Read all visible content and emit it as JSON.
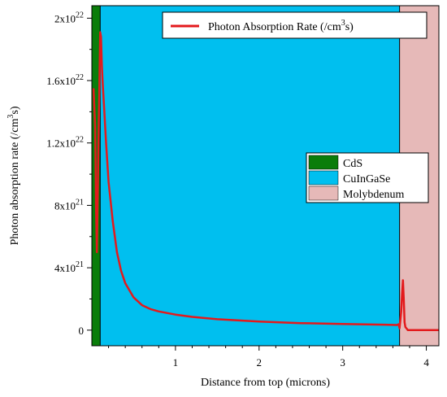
{
  "chart_data": {
    "type": "line",
    "title": "",
    "xlabel": "Distance from top (microns)",
    "ylabel_parts": [
      "Photon absorption rate (/cm",
      "3",
      "s)"
    ],
    "xlim": [
      0,
      4.15
    ],
    "ylim": [
      -1e+21,
      2.08e+22
    ],
    "x_ticks": [
      1,
      2,
      3,
      4
    ],
    "y_ticks": [
      {
        "value": 0,
        "mantissa": "0",
        "exp": ""
      },
      {
        "value": 4e+21,
        "mantissa": "4x10",
        "exp": "21"
      },
      {
        "value": 8e+21,
        "mantissa": "8x10",
        "exp": "21"
      },
      {
        "value": 1.2e+22,
        "mantissa": "1.2x10",
        "exp": "22"
      },
      {
        "value": 1.6e+22,
        "mantissa": "1.6x10",
        "exp": "22"
      },
      {
        "value": 2e+22,
        "mantissa": "2x10",
        "exp": "22"
      }
    ],
    "regions": [
      {
        "name": "CdS",
        "x0": 0,
        "x1": 0.1,
        "color": "#0a7d0a"
      },
      {
        "name": "CuInGaSe",
        "x0": 0.1,
        "x1": 3.68,
        "color": "#00bfef"
      },
      {
        "name": "Molybdenum",
        "x0": 3.68,
        "x1": 4.15,
        "color": "#e6b9b8"
      }
    ],
    "series": [
      {
        "name": "Photon Absorption Rate (/cm3s)",
        "name_parts": [
          "Photon Absorption Rate (/cm",
          "3",
          "s)"
        ],
        "color": "#e31a1c",
        "x": [
          0.02,
          0.04,
          0.05,
          0.06,
          0.08,
          0.1,
          0.11,
          0.12,
          0.13,
          0.15,
          0.17,
          0.2,
          0.25,
          0.3,
          0.35,
          0.4,
          0.5,
          0.6,
          0.7,
          0.8,
          1.0,
          1.2,
          1.5,
          2.0,
          2.5,
          3.0,
          3.5,
          3.65,
          3.67,
          3.68,
          3.7,
          3.71,
          3.72,
          3.73,
          3.74,
          3.75,
          3.78,
          3.8,
          3.85,
          3.9,
          4.0,
          4.15
        ],
        "y": [
          1.55e+22,
          1.3e+22,
          8e+21,
          5e+21,
          1.2e+22,
          1.91e+22,
          1.88e+22,
          1.7e+22,
          1.58e+22,
          1.4e+22,
          1.2e+22,
          9.5e+21,
          7e+21,
          5e+21,
          3.8e+21,
          3e+21,
          2.1e+21,
          1.6e+21,
          1.35e+21,
          1.2e+21,
          1e+21,
          8.5e+20,
          7e+20,
          5.5e+20,
          4.5e+20,
          4e+20,
          3.5e+20,
          3.3e+20,
          3.8e+20,
          1.2e+20,
          1.2e+21,
          2.3e+21,
          3.2e+21,
          2e+21,
          5e+20,
          2e+20,
          0,
          0,
          0,
          0,
          0,
          0
        ]
      }
    ],
    "legend_placement": "top-right",
    "grid": false
  }
}
